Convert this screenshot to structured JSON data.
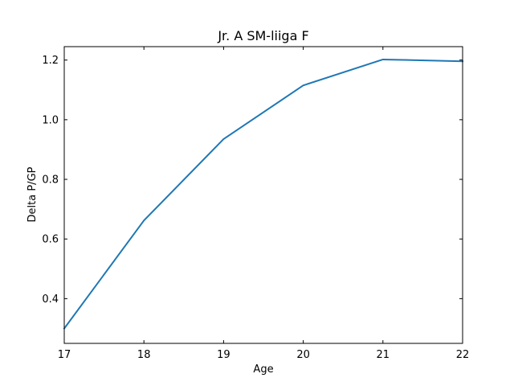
{
  "chart_data": {
    "type": "line",
    "title": "Jr. A SM-liiga F",
    "xlabel": "Age",
    "ylabel": "Delta P/GP",
    "x": [
      17,
      18,
      19,
      20,
      21,
      22
    ],
    "series": [
      {
        "values": [
          0.3,
          0.662,
          0.935,
          1.115,
          1.202,
          1.196
        ],
        "color": "#1f77b4"
      }
    ],
    "xlim": [
      17,
      22
    ],
    "ylim": [
      0.25,
      1.245
    ],
    "xticks": [
      "17",
      "18",
      "19",
      "20",
      "21",
      "22"
    ],
    "xtick_values": [
      17,
      18,
      19,
      20,
      21,
      22
    ],
    "yticks": [
      "0.4",
      "0.6",
      "0.8",
      "1.0",
      "1.2"
    ],
    "ytick_values": [
      0.4,
      0.6,
      0.8,
      1.0,
      1.2
    ],
    "grid": false,
    "legend": "none"
  }
}
